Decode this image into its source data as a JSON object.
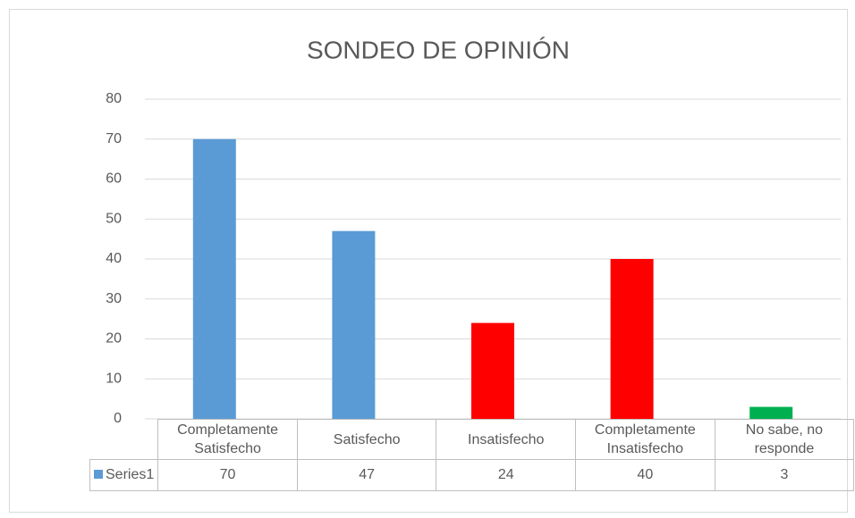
{
  "chart_data": {
    "type": "bar",
    "title": "SONDEO DE OPINIÓN",
    "categories": [
      "Completamente Satisfecho",
      "Satisfecho",
      "Insatisfecho",
      "Completamente Insatisfecho",
      "No sabe, no responde"
    ],
    "series": [
      {
        "name": "Series1",
        "color": "#5b9bd5",
        "point_colors": [
          "#5b9bd5",
          "#5b9bd5",
          "#ff0000",
          "#ff0000",
          "#00b050"
        ],
        "values": [
          70,
          47,
          24,
          40,
          3
        ]
      }
    ],
    "ylim": [
      0,
      80
    ],
    "yticks": [
      0,
      10,
      20,
      30,
      40,
      50,
      60,
      70,
      80
    ],
    "grid": true,
    "data_table": true
  }
}
